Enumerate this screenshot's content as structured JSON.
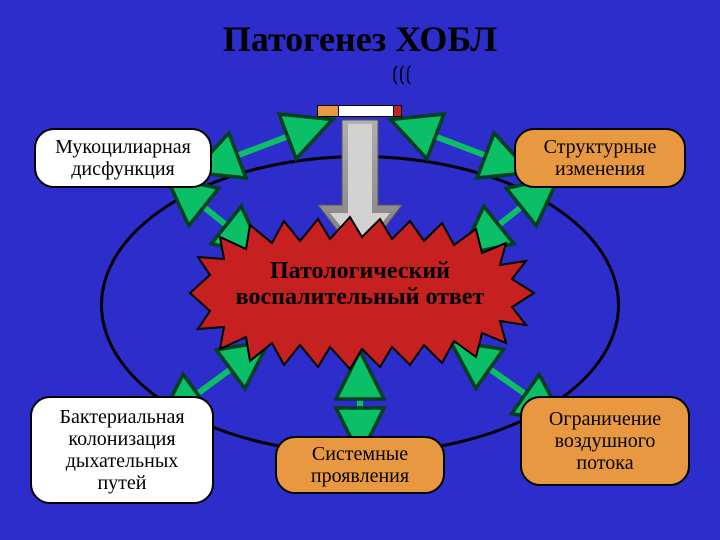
{
  "title": "Патогенез ХОБЛ",
  "center": {
    "line1": "Патологический",
    "line2": "воспалительный ответ",
    "fill": "#c62020",
    "stroke": "#000000"
  },
  "boxes": {
    "top_left": {
      "text": "Мукоцилиарная\nдисфункция",
      "fill": "#ffffff"
    },
    "top_right": {
      "text": "Структурные\nизменения",
      "fill": "#e89840"
    },
    "bottom_left": {
      "text": "Бактериальная\nколонизация\nдыхательных\nпутей",
      "fill": "#ffffff"
    },
    "bottom_right": {
      "text": "Ограничение\nвоздушного\nпотока",
      "fill": "#e89840"
    },
    "bottom_center": {
      "text": "Системные\nпроявления",
      "fill": "#e89840"
    }
  },
  "styling": {
    "background": "#2d2dcc",
    "ellipse_stroke": "#000000",
    "box_border_radius": 20,
    "title_fontsize": 36,
    "box_fontsize": 20,
    "center_fontsize": 24,
    "arrow_green": "#0abf66",
    "arrow_green_stroke": "#004020",
    "big_arrow_outer": "#808080",
    "big_arrow_inner": "#c0c0c0"
  },
  "cigarette": {
    "filter_color": "#e89840",
    "body_color": "#ffffff",
    "tip_color": "#c62020"
  }
}
